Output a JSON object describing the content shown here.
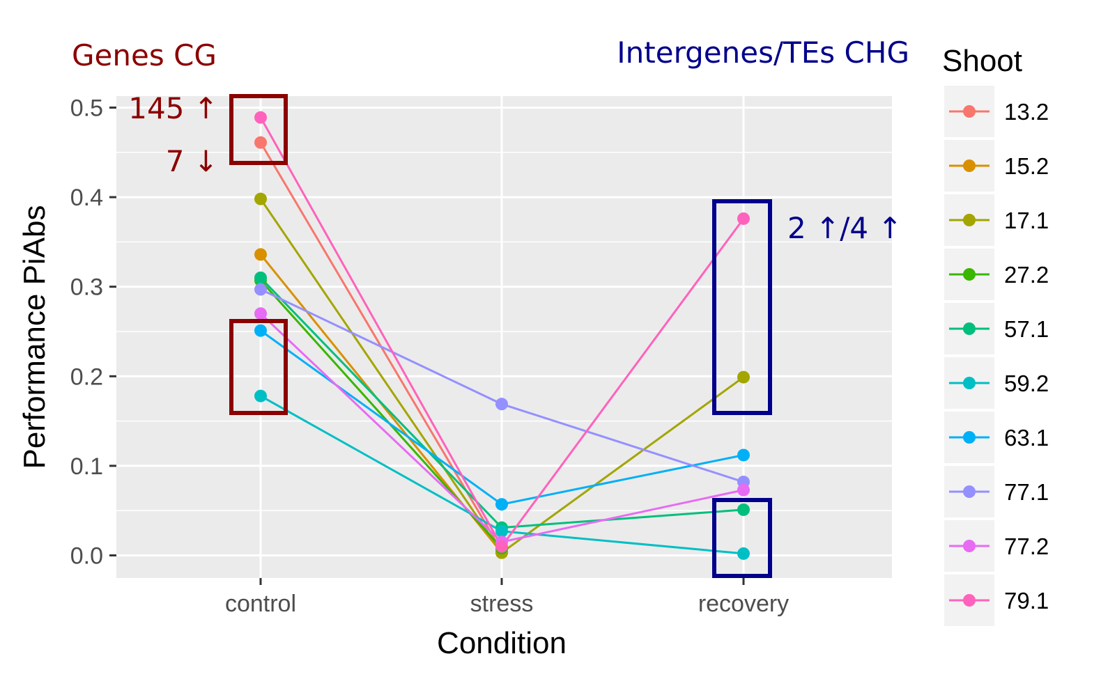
{
  "chart_data": {
    "type": "line",
    "xlabel": "Condition",
    "ylabel": "Performance PiAbs",
    "categories": [
      "control",
      "stress",
      "recovery"
    ],
    "ylim": [
      -0.02,
      0.515
    ],
    "yticks": [
      0.0,
      0.1,
      0.2,
      0.3,
      0.4,
      0.5
    ],
    "ytick_labels": [
      "0.0",
      "0.1",
      "0.2",
      "0.3",
      "0.4",
      "0.5"
    ],
    "grid": true,
    "legend": {
      "title": "Shoot",
      "placement": "right"
    },
    "series": [
      {
        "name": "13.2",
        "color": "#F8766D",
        "values": [
          0.461,
          0.005,
          null
        ]
      },
      {
        "name": "15.2",
        "color": "#D89000",
        "values": [
          0.336,
          0.003,
          null
        ]
      },
      {
        "name": "17.1",
        "color": "#A3A500",
        "values": [
          0.398,
          0.003,
          0.199
        ]
      },
      {
        "name": "27.2",
        "color": "#39B600",
        "values": [
          0.307,
          0.008,
          null
        ]
      },
      {
        "name": "57.1",
        "color": "#00BF7D",
        "values": [
          0.31,
          0.031,
          0.051
        ]
      },
      {
        "name": "59.2",
        "color": "#00BFC4",
        "values": [
          0.178,
          0.027,
          0.002
        ]
      },
      {
        "name": "63.1",
        "color": "#00B0F6",
        "values": [
          0.251,
          0.057,
          0.112
        ]
      },
      {
        "name": "77.1",
        "color": "#9590FF",
        "values": [
          0.297,
          0.169,
          0.082
        ]
      },
      {
        "name": "77.2",
        "color": "#E76BF3",
        "values": [
          0.27,
          0.015,
          0.073
        ]
      },
      {
        "name": "79.1",
        "color": "#FF62BC",
        "values": [
          0.489,
          0.01,
          0.376
        ]
      }
    ],
    "annotations": [
      {
        "text": "Genes CG",
        "color": "#8b0000"
      },
      {
        "text": "Intergenes/TEs CHG",
        "color": "#00008b"
      },
      {
        "text": "145 ↑",
        "color": "#8b0000"
      },
      {
        "text": "7 ↓",
        "color": "#8b0000"
      },
      {
        "text": "2 ↑/4 ↑",
        "color": "#00008b"
      }
    ]
  }
}
